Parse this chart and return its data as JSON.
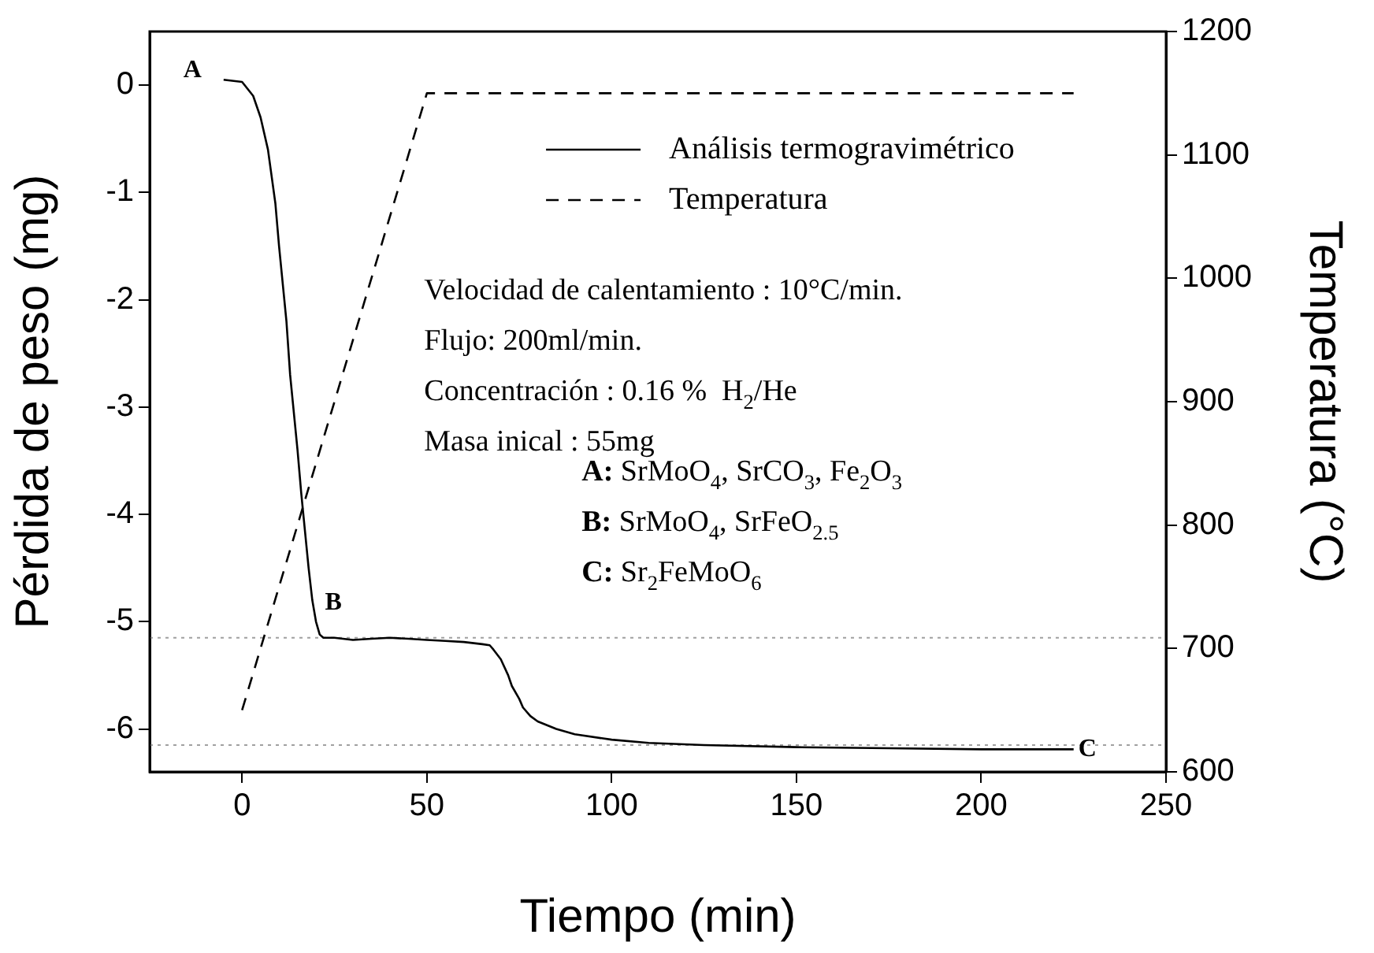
{
  "chart_data": {
    "type": "line",
    "xlabel": "Tiempo (min)",
    "ylabel": "Pérdida de peso (mg)",
    "y2label": "Temperatura (°C)",
    "xlim": [
      -25,
      250
    ],
    "xticks": [
      0,
      50,
      100,
      150,
      200,
      250
    ],
    "ylim": [
      -6.4,
      0.5
    ],
    "yticks": [
      0,
      -1,
      -2,
      -3,
      -4,
      -5,
      -6
    ],
    "y2lim": [
      600,
      1200
    ],
    "y2ticks": [
      600,
      700,
      800,
      900,
      1000,
      1100,
      1200
    ],
    "legend": "top right",
    "grid": false,
    "series": [
      {
        "name": "Análisis termogravimétrico",
        "color": "#000000",
        "line_style": "solid",
        "x": [
          -5,
          0,
          3,
          5,
          7,
          9,
          10,
          12,
          13,
          15,
          16,
          18,
          19,
          20,
          21,
          22,
          25,
          30,
          35,
          40,
          45,
          50,
          55,
          60,
          65,
          67,
          68,
          70,
          72,
          73,
          75,
          76,
          78,
          80,
          85,
          90,
          100,
          110,
          125,
          150,
          175,
          200,
          225
        ],
        "values": [
          0.05,
          0.03,
          -0.1,
          -0.3,
          -0.6,
          -1.1,
          -1.5,
          -2.2,
          -2.7,
          -3.4,
          -3.8,
          -4.5,
          -4.8,
          -5.0,
          -5.12,
          -5.15,
          -5.15,
          -5.17,
          -5.16,
          -5.15,
          -5.16,
          -5.17,
          -5.18,
          -5.19,
          -5.21,
          -5.22,
          -5.26,
          -5.35,
          -5.5,
          -5.6,
          -5.72,
          -5.8,
          -5.88,
          -5.93,
          -6.0,
          -6.05,
          -6.1,
          -6.13,
          -6.15,
          -6.17,
          -6.18,
          -6.19,
          -6.19
        ]
      },
      {
        "name": "Temperatura",
        "color": "#000000",
        "line_style": "dashed",
        "axis": "y2",
        "x": [
          0,
          50,
          225
        ],
        "values": [
          650,
          1150,
          1150
        ]
      }
    ],
    "ref_lines": [
      {
        "axis": "y",
        "value": -5.15,
        "color": "#a0a0a0",
        "line_style": "dotted"
      },
      {
        "axis": "y",
        "value": -6.15,
        "color": "#a0a0a0",
        "line_style": "dotted"
      }
    ],
    "annotations": [
      "Velocidad de calentamiento : 10°C/min.",
      "Flujo: 200ml/min.",
      "Concentración : 0.16 %  H$_{2}$/He",
      "Masa inical : 55mg",
      "A: SrMoO$_{4}$, SrCO$_{3}$, Fe$_{2}$O$_{3}$",
      "B: SrMoO$_{4}$, SrFeO$_{2.5}$",
      "C: Sr$_{2}$FeMoO$_{6}$",
      {
        "text": "A",
        "x": -5,
        "y": 0.05
      },
      {
        "text": "B",
        "x": 22,
        "y": -5.15
      },
      {
        "text": "C",
        "x": 225,
        "y": -6.19
      }
    ]
  }
}
